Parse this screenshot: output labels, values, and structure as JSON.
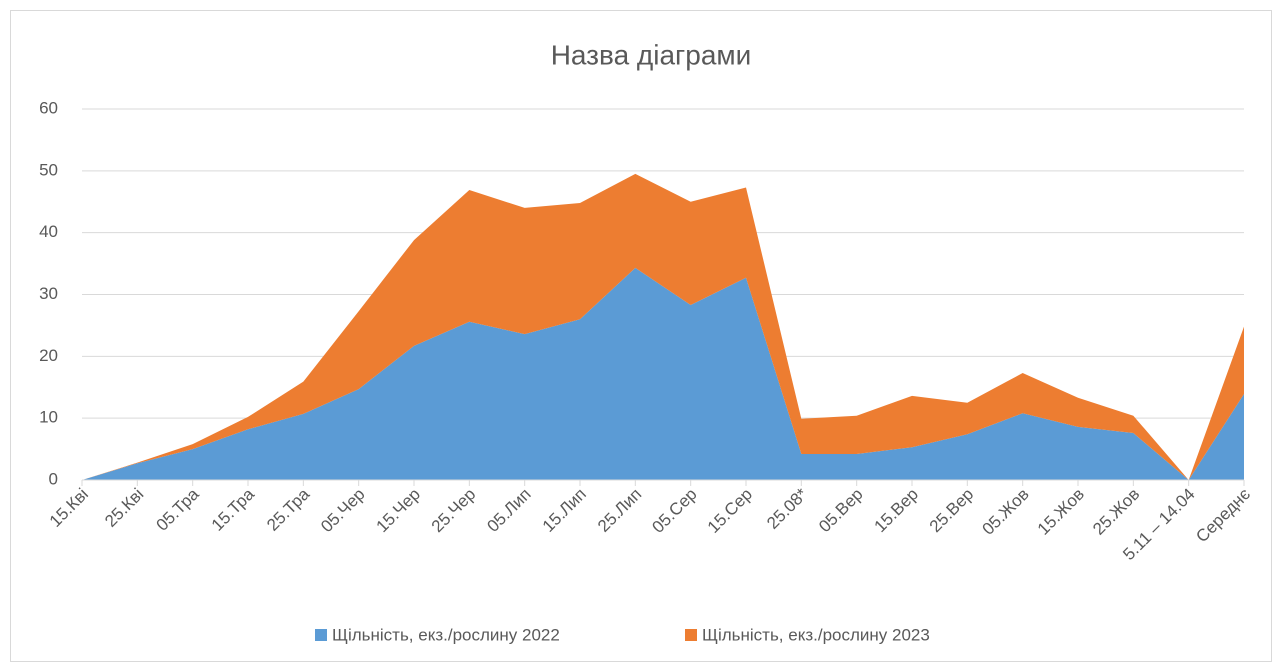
{
  "chart_data": {
    "type": "area",
    "stacked": true,
    "title": "Назва діаграми",
    "categories": [
      "15.Кві",
      "25.Кві",
      "05.Тра",
      "15.Тра",
      "25.Тра",
      "05.Чер",
      "15.Чер",
      "25.Чер",
      "05.Лип",
      "15.Лип",
      "25.Лип",
      "05.Сер",
      "15.Сер",
      "25.08*",
      "05.Вер",
      "15.Вер",
      "25.Вер",
      "05.Жов",
      "15.Жов",
      "25.Жов",
      "5.11 – 14.04",
      "Середнє"
    ],
    "series": [
      {
        "name": "Щільність, екз./рослину 2022",
        "color": "#5b9bd5",
        "values": [
          0,
          2.7,
          5,
          8.2,
          10.7,
          14.7,
          21.7,
          25.6,
          23.6,
          26,
          34.3,
          28.3,
          32.7,
          4.2,
          4.2,
          5.3,
          7.4,
          10.8,
          8.6,
          7.6,
          0,
          13.9
        ]
      },
      {
        "name": "Щільність, екз./рослину 2023",
        "color": "#ed7d31",
        "values": [
          0,
          0.1,
          0.8,
          2.0,
          5.2,
          12.6,
          17.1,
          21.3,
          20.4,
          18.8,
          15.2,
          16.7,
          14.6,
          5.7,
          6.2,
          8.3,
          5.1,
          6.5,
          4.7,
          2.8,
          0,
          10.9
        ]
      }
    ],
    "ylim": [
      0,
      60
    ],
    "yticks": [
      0,
      10,
      20,
      30,
      40,
      50,
      60
    ],
    "grid": true,
    "legend": "bottom"
  }
}
